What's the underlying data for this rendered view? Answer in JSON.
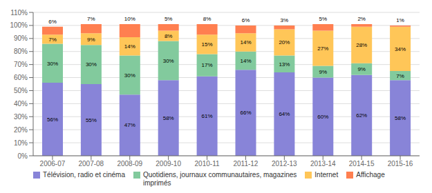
{
  "chart_data": {
    "type": "bar",
    "stacked": true,
    "data_labels": true,
    "grid": true,
    "legend": "bottom",
    "categories": [
      "2006-07",
      "2007-08",
      "2008-09",
      "2009-10",
      "2010-11",
      "2011-12",
      "2012-13",
      "2013-14",
      "2014-15",
      "2015-16"
    ],
    "series": [
      {
        "name": "Télévision, radio et cinéma",
        "color": "#8884d8",
        "values": [
          56,
          55,
          47,
          58,
          61,
          66,
          64,
          60,
          62,
          58
        ],
        "value_labels": [
          "56%",
          "55%",
          "47%",
          "58%",
          "61%",
          "66%",
          "64%",
          "60%",
          "62%",
          "58%"
        ]
      },
      {
        "name": "Quotidiens, journaux communautaires, magazines\nimprimés",
        "color": "#82ca9d",
        "values": [
          30,
          30,
          30,
          30,
          17,
          14,
          13,
          9,
          9,
          7
        ],
        "value_labels": [
          "30%",
          "30%",
          "30%",
          "30%",
          "17%",
          "14%",
          "13%",
          "9%",
          "9%",
          "7%"
        ]
      },
      {
        "name": "Internet",
        "color": "#ffc658",
        "values": [
          7,
          9,
          14,
          8,
          15,
          14,
          20,
          27,
          28,
          34
        ],
        "value_labels": [
          "7%",
          "9%",
          "14%",
          "8%",
          "15%",
          "14%",
          "20%",
          "27%",
          "28%",
          "34%"
        ]
      },
      {
        "name": "Affichage",
        "color": "#ff7f50",
        "values": [
          6,
          7,
          10,
          5,
          8,
          6,
          3,
          5,
          2,
          1
        ],
        "value_labels": [
          "6%",
          "7%",
          "10%",
          "5%",
          "8%",
          "6%",
          "3%",
          "5%",
          "2%",
          "1%"
        ]
      }
    ],
    "ylim": [
      0,
      110
    ],
    "yticks": [
      {
        "value": 0,
        "label": "0%"
      },
      {
        "value": 10,
        "label": "10%"
      },
      {
        "value": 20,
        "label": "20%"
      },
      {
        "value": 30,
        "label": "30%"
      },
      {
        "value": 40,
        "label": "40%"
      },
      {
        "value": 50,
        "label": "50%"
      },
      {
        "value": 60,
        "label": "60%"
      },
      {
        "value": 70,
        "label": "70%"
      },
      {
        "value": 80,
        "label": "80%"
      },
      {
        "value": 90,
        "label": "90%"
      },
      {
        "value": 100,
        "label": "100%"
      },
      {
        "value": 110,
        "label": "110%"
      }
    ]
  }
}
